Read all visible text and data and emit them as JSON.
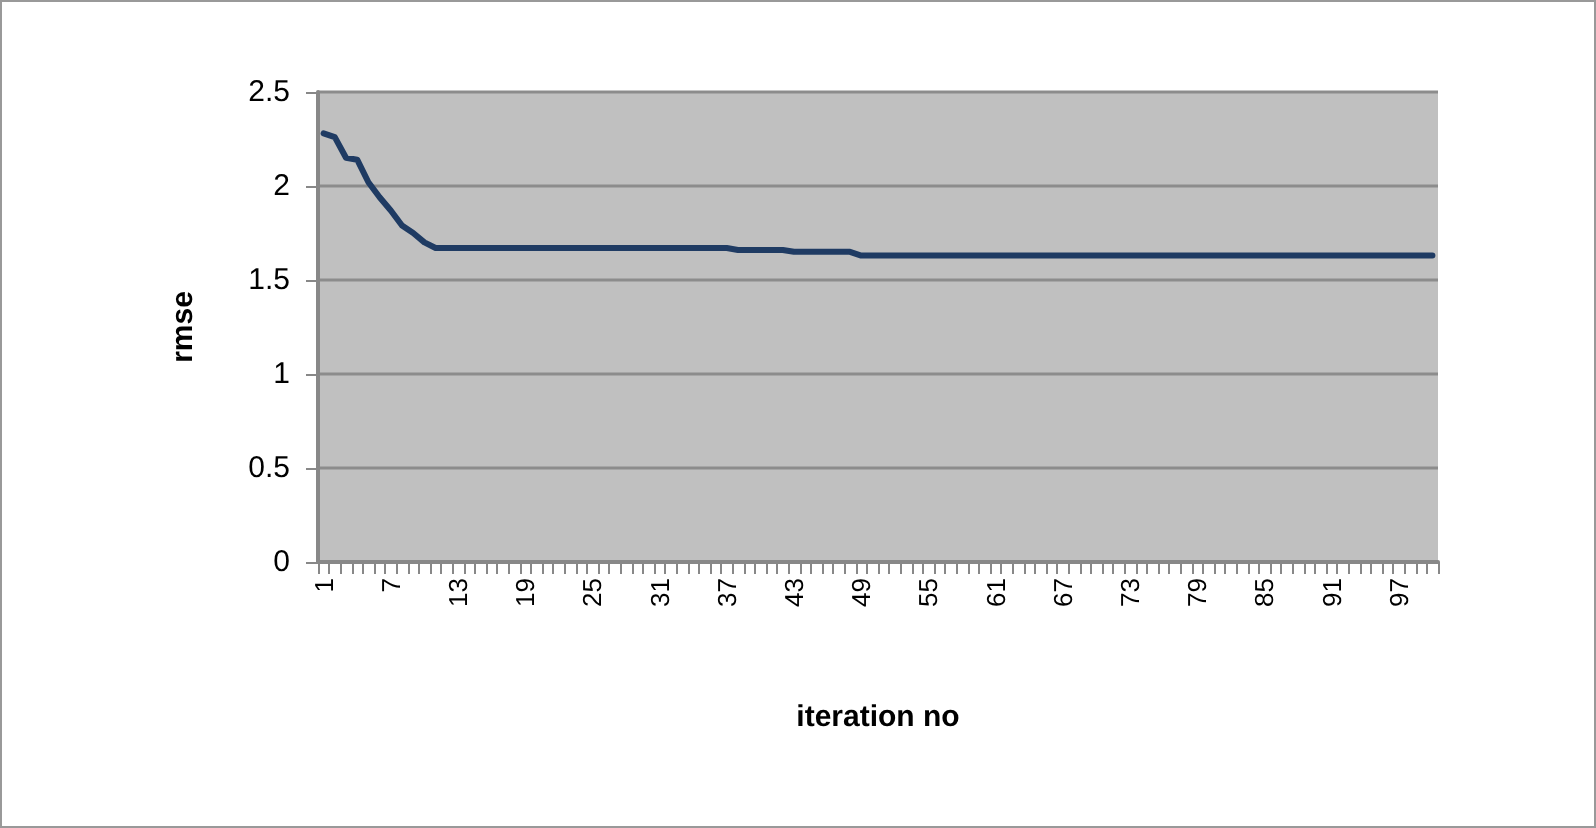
{
  "chart_data": {
    "type": "line",
    "xlabel": "iteration no",
    "ylabel": "rmse",
    "categories": [
      "1",
      null,
      null,
      null,
      null,
      null,
      "7",
      null,
      null,
      null,
      null,
      null,
      "13",
      null,
      null,
      null,
      null,
      null,
      "19",
      null,
      null,
      null,
      null,
      null,
      "25",
      null,
      null,
      null,
      null,
      null,
      "31",
      null,
      null,
      null,
      null,
      null,
      "37",
      null,
      null,
      null,
      null,
      null,
      "43",
      null,
      null,
      null,
      null,
      null,
      "49",
      null,
      null,
      null,
      null,
      null,
      "55",
      null,
      null,
      null,
      null,
      null,
      "61",
      null,
      null,
      null,
      null,
      null,
      "67",
      null,
      null,
      null,
      null,
      null,
      "73",
      null,
      null,
      null,
      null,
      null,
      "79",
      null,
      null,
      null,
      null,
      null,
      "85",
      null,
      null,
      null,
      null,
      null,
      "91",
      null,
      null,
      null,
      null,
      null,
      "97",
      null,
      null,
      null
    ],
    "series": [
      {
        "color": "#1f3b63",
        "values": [
          2.28,
          2.26,
          2.15,
          2.14,
          2.02,
          1.94,
          1.87,
          1.79,
          1.75,
          1.7,
          1.67,
          1.67,
          1.67,
          1.67,
          1.67,
          1.67,
          1.67,
          1.67,
          1.67,
          1.67,
          1.67,
          1.67,
          1.67,
          1.67,
          1.67,
          1.67,
          1.67,
          1.67,
          1.67,
          1.67,
          1.67,
          1.67,
          1.67,
          1.67,
          1.67,
          1.67,
          1.67,
          1.66,
          1.66,
          1.66,
          1.66,
          1.66,
          1.65,
          1.65,
          1.65,
          1.65,
          1.65,
          1.65,
          1.63,
          1.63,
          1.63,
          1.63,
          1.63,
          1.63,
          1.63,
          1.63,
          1.63,
          1.63,
          1.63,
          1.63,
          1.63,
          1.63,
          1.63,
          1.63,
          1.63,
          1.63,
          1.63,
          1.63,
          1.63,
          1.63,
          1.63,
          1.63,
          1.63,
          1.63,
          1.63,
          1.63,
          1.63,
          1.63,
          1.63,
          1.63,
          1.63,
          1.63,
          1.63,
          1.63,
          1.63,
          1.63,
          1.63,
          1.63,
          1.63,
          1.63,
          1.63,
          1.63,
          1.63,
          1.63,
          1.63,
          1.63,
          1.63,
          1.63,
          1.63,
          1.63
        ]
      }
    ],
    "ylim": [
      0,
      2.5
    ],
    "yticks": [
      0,
      0.5,
      1,
      1.5,
      2,
      2.5
    ],
    "grid": "y",
    "marker": "none",
    "line_style": "solid"
  }
}
